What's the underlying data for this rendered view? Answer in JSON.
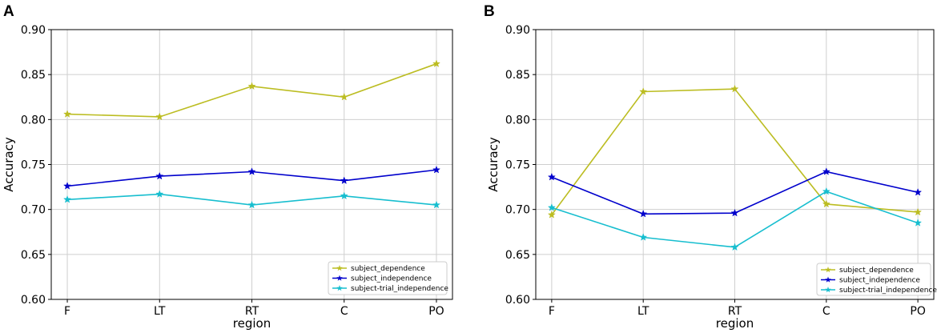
{
  "chart_data": [
    {
      "panel_label": "A",
      "type": "line",
      "title": "",
      "xlabel": "region",
      "ylabel": "Accuracy",
      "categories": [
        "F",
        "LT",
        "RT",
        "C",
        "PO"
      ],
      "ylim": [
        0.6,
        0.9
      ],
      "yticks": [
        0.6,
        0.65,
        0.7,
        0.75,
        0.8,
        0.85,
        0.9
      ],
      "ytick_labels": [
        "0.60",
        "0.65",
        "0.70",
        "0.75",
        "0.80",
        "0.85",
        "0.90"
      ],
      "grid": true,
      "legend_position": "lower-right",
      "marker": "star",
      "series": [
        {
          "name": "subject_dependence",
          "color": "#bcbd22",
          "values": [
            0.806,
            0.803,
            0.837,
            0.825,
            0.862
          ]
        },
        {
          "name": "subject_independence",
          "color": "#0000cc",
          "values": [
            0.726,
            0.737,
            0.742,
            0.732,
            0.744
          ]
        },
        {
          "name": "subject-trial_independence",
          "color": "#17becf",
          "values": [
            0.711,
            0.717,
            0.705,
            0.715,
            0.705
          ]
        }
      ]
    },
    {
      "panel_label": "B",
      "type": "line",
      "title": "",
      "xlabel": "region",
      "ylabel": "Accuracy",
      "categories": [
        "F",
        "LT",
        "RT",
        "C",
        "PO"
      ],
      "ylim": [
        0.6,
        0.9
      ],
      "yticks": [
        0.6,
        0.65,
        0.7,
        0.75,
        0.8,
        0.85,
        0.9
      ],
      "ytick_labels": [
        "0.60",
        "0.65",
        "0.70",
        "0.75",
        "0.80",
        "0.85",
        "0.90"
      ],
      "grid": true,
      "legend_position": "lower-right",
      "marker": "star",
      "series": [
        {
          "name": "subject_dependence",
          "color": "#bcbd22",
          "values": [
            0.694,
            0.831,
            0.834,
            0.706,
            0.697
          ]
        },
        {
          "name": "subject_independence",
          "color": "#0000cc",
          "values": [
            0.736,
            0.695,
            0.696,
            0.742,
            0.719
          ]
        },
        {
          "name": "subject-trial_independence",
          "color": "#17becf",
          "values": [
            0.702,
            0.669,
            0.658,
            0.72,
            0.685
          ]
        }
      ]
    }
  ]
}
